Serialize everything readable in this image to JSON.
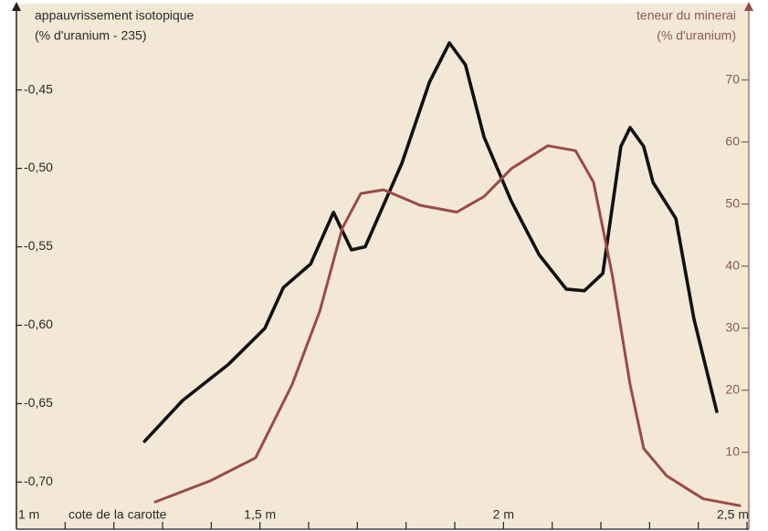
{
  "chart_data": {
    "type": "line",
    "ylabel": [
      "appauvrissement isotopique",
      "(% d'uranium - 235)"
    ],
    "y2label": [
      "teneur du minerai",
      "(% d'uranium)"
    ],
    "xlabel": "cote de la carotte",
    "xlim": [
      1,
      2.5
    ],
    "xticks": [
      {
        "value": 1,
        "label": "1 m"
      },
      {
        "value": 1.5,
        "label": "1,5 m"
      },
      {
        "value": 2,
        "label": "2 m"
      },
      {
        "value": 2.5,
        "label": "2,5 m"
      }
    ],
    "xminorticks": [
      1.1,
      1.2,
      1.3,
      1.4,
      1.5,
      1.6,
      1.7,
      1.8,
      1.9,
      2,
      2.1,
      2.2,
      2.3,
      2.4,
      2.5
    ],
    "ylim": [
      -0.73,
      -0.395
    ],
    "yticks": [
      {
        "value": -0.45,
        "label": "-0,45"
      },
      {
        "value": -0.5,
        "label": "-0,50"
      },
      {
        "value": -0.55,
        "label": "-0,55"
      },
      {
        "value": -0.6,
        "label": "-0,60"
      },
      {
        "value": -0.65,
        "label": "-0,65"
      },
      {
        "value": -0.7,
        "label": "-0,70"
      }
    ],
    "y2lim": [
      -2.4,
      82.3
    ],
    "y2ticks": [
      10,
      20,
      30,
      40,
      50,
      60,
      70
    ],
    "series": [
      {
        "color": "#111111",
        "x": [
          1.263,
          1.341,
          1.435,
          1.51,
          1.548,
          1.604,
          1.651,
          1.688,
          1.716,
          1.791,
          1.848,
          1.889,
          1.922,
          1.96,
          2.016,
          2.073,
          2.129,
          2.166,
          2.204,
          2.241,
          2.26,
          2.288,
          2.307,
          2.354,
          2.391,
          2.438
        ],
        "values": [
          -0.674,
          -0.648,
          -0.625,
          -0.602,
          -0.576,
          -0.561,
          -0.528,
          -0.552,
          -0.55,
          -0.497,
          -0.445,
          -0.42,
          -0.434,
          -0.48,
          -0.521,
          -0.555,
          -0.577,
          -0.578,
          -0.567,
          -0.486,
          -0.474,
          -0.486,
          -0.509,
          -0.532,
          -0.596,
          -0.655
        ]
      },
      {
        "color": "#9a4a48",
        "axis": "y2",
        "x": [
          1.285,
          1.398,
          1.491,
          1.566,
          1.623,
          1.669,
          1.707,
          1.754,
          1.829,
          1.904,
          1.96,
          2.016,
          2.091,
          2.148,
          2.185,
          2.223,
          2.26,
          2.288,
          2.335,
          2.41,
          2.485
        ],
        "values": [
          2.0,
          5.4,
          9.1,
          20.9,
          32.8,
          46.1,
          51.7,
          52.3,
          49.8,
          48.7,
          51.2,
          55.7,
          59.4,
          58.6,
          53.5,
          38.7,
          20.9,
          10.6,
          6.2,
          2.5,
          1.4
        ]
      }
    ]
  }
}
